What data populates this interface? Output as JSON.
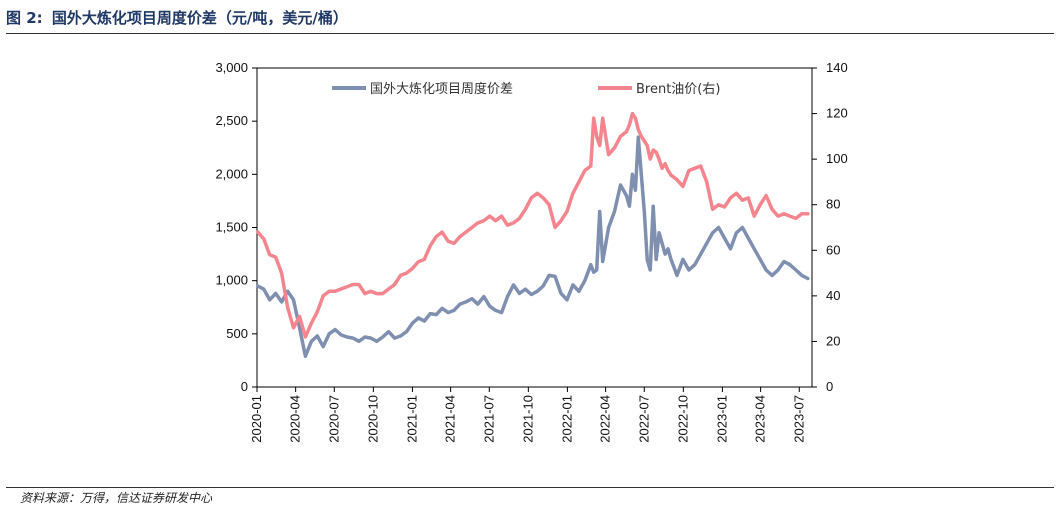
{
  "figure": {
    "label": "图 2:",
    "title": "国外大炼化项目周度价差（元/吨，美元/桶）",
    "source": "资料来源：万得，信达证券研发中心"
  },
  "chart_data": {
    "type": "line",
    "title": "",
    "x_tick_labels": [
      "2020-01",
      "2020-04",
      "2020-07",
      "2020-10",
      "2021-01",
      "2021-04",
      "2021-07",
      "2021-10",
      "2022-01",
      "2022-04",
      "2022-07",
      "2022-10",
      "2023-01",
      "2023-04",
      "2023-07"
    ],
    "y_left": {
      "range": [
        0,
        3000
      ],
      "ticks": [
        "0",
        "500",
        "1,000",
        "1,500",
        "2,000",
        "2,500",
        "3,000"
      ]
    },
    "y_right": {
      "range": [
        0,
        140
      ],
      "ticks": [
        "0",
        "20",
        "40",
        "60",
        "80",
        "100",
        "120",
        "140"
      ]
    },
    "legend": {
      "position": "top"
    },
    "series": [
      {
        "name": "国外大炼化项目周度价差",
        "axis": "left",
        "color": "#7f8faf",
        "x": [
          "2020-01-03",
          "2020-01-17",
          "2020-01-31",
          "2020-02-14",
          "2020-02-28",
          "2020-03-13",
          "2020-03-27",
          "2020-04-10",
          "2020-04-24",
          "2020-05-08",
          "2020-05-22",
          "2020-06-05",
          "2020-06-19",
          "2020-07-03",
          "2020-07-17",
          "2020-07-31",
          "2020-08-14",
          "2020-08-28",
          "2020-09-11",
          "2020-09-25",
          "2020-10-09",
          "2020-10-23",
          "2020-11-06",
          "2020-11-20",
          "2020-12-04",
          "2020-12-18",
          "2021-01-01",
          "2021-01-15",
          "2021-01-29",
          "2021-02-12",
          "2021-02-26",
          "2021-03-12",
          "2021-03-26",
          "2021-04-09",
          "2021-04-23",
          "2021-05-07",
          "2021-05-21",
          "2021-06-04",
          "2021-06-18",
          "2021-07-02",
          "2021-07-16",
          "2021-07-30",
          "2021-08-13",
          "2021-08-27",
          "2021-09-10",
          "2021-09-24",
          "2021-10-08",
          "2021-10-22",
          "2021-11-05",
          "2021-11-19",
          "2021-12-03",
          "2021-12-17",
          "2021-12-31",
          "2022-01-14",
          "2022-01-28",
          "2022-02-11",
          "2022-02-25",
          "2022-03-04",
          "2022-03-11",
          "2022-03-18",
          "2022-03-25",
          "2022-04-08",
          "2022-04-22",
          "2022-05-06",
          "2022-05-20",
          "2022-05-27",
          "2022-06-03",
          "2022-06-10",
          "2022-06-17",
          "2022-06-24",
          "2022-07-01",
          "2022-07-08",
          "2022-07-15",
          "2022-07-22",
          "2022-07-29",
          "2022-08-05",
          "2022-08-12",
          "2022-08-19",
          "2022-08-26",
          "2022-09-02",
          "2022-09-16",
          "2022-09-30",
          "2022-10-14",
          "2022-10-28",
          "2022-11-11",
          "2022-11-25",
          "2022-12-09",
          "2022-12-23",
          "2023-01-06",
          "2023-01-20",
          "2023-02-03",
          "2023-02-17",
          "2023-03-03",
          "2023-03-17",
          "2023-03-31",
          "2023-04-14",
          "2023-04-28",
          "2023-05-12",
          "2023-05-26",
          "2023-06-09",
          "2023-06-23",
          "2023-07-07",
          "2023-07-21"
        ],
        "values": [
          950,
          920,
          820,
          880,
          800,
          900,
          820,
          560,
          290,
          430,
          480,
          380,
          500,
          540,
          490,
          470,
          460,
          430,
          470,
          460,
          430,
          470,
          520,
          460,
          480,
          520,
          600,
          650,
          620,
          690,
          680,
          740,
          700,
          720,
          780,
          800,
          830,
          780,
          850,
          760,
          720,
          700,
          850,
          960,
          880,
          920,
          870,
          900,
          950,
          1050,
          1040,
          880,
          820,
          960,
          900,
          1000,
          1150,
          1080,
          1100,
          1650,
          1180,
          1500,
          1650,
          1900,
          1800,
          1700,
          2000,
          1850,
          2350,
          2000,
          1650,
          1200,
          1100,
          1700,
          1200,
          1450,
          1350,
          1250,
          1300,
          1200,
          1050,
          1200,
          1100,
          1150,
          1250,
          1350,
          1450,
          1500,
          1400,
          1300,
          1450,
          1500,
          1400,
          1300,
          1200,
          1100,
          1050,
          1100,
          1180,
          1150,
          1100,
          1050,
          1020
        ]
      },
      {
        "name": "Brent油价(右)",
        "axis": "right",
        "color": "#f4858e",
        "x": [
          "2020-01-03",
          "2020-01-17",
          "2020-01-31",
          "2020-02-14",
          "2020-02-28",
          "2020-03-13",
          "2020-03-27",
          "2020-04-10",
          "2020-04-24",
          "2020-05-08",
          "2020-05-22",
          "2020-06-05",
          "2020-06-19",
          "2020-07-03",
          "2020-07-17",
          "2020-07-31",
          "2020-08-14",
          "2020-08-28",
          "2020-09-11",
          "2020-09-25",
          "2020-10-09",
          "2020-10-23",
          "2020-11-06",
          "2020-11-20",
          "2020-12-04",
          "2020-12-18",
          "2021-01-01",
          "2021-01-15",
          "2021-01-29",
          "2021-02-12",
          "2021-02-26",
          "2021-03-12",
          "2021-03-26",
          "2021-04-09",
          "2021-04-23",
          "2021-05-07",
          "2021-05-21",
          "2021-06-04",
          "2021-06-18",
          "2021-07-02",
          "2021-07-16",
          "2021-07-30",
          "2021-08-13",
          "2021-08-27",
          "2021-09-10",
          "2021-09-24",
          "2021-10-08",
          "2021-10-22",
          "2021-11-05",
          "2021-11-19",
          "2021-12-03",
          "2021-12-17",
          "2021-12-31",
          "2022-01-14",
          "2022-01-28",
          "2022-02-11",
          "2022-02-25",
          "2022-03-04",
          "2022-03-11",
          "2022-03-18",
          "2022-03-25",
          "2022-04-08",
          "2022-04-22",
          "2022-05-06",
          "2022-05-20",
          "2022-05-27",
          "2022-06-03",
          "2022-06-10",
          "2022-06-17",
          "2022-06-24",
          "2022-07-01",
          "2022-07-08",
          "2022-07-15",
          "2022-07-22",
          "2022-07-29",
          "2022-08-05",
          "2022-08-12",
          "2022-08-19",
          "2022-08-26",
          "2022-09-02",
          "2022-09-16",
          "2022-09-30",
          "2022-10-14",
          "2022-10-28",
          "2022-11-11",
          "2022-11-25",
          "2022-12-09",
          "2022-12-23",
          "2023-01-06",
          "2023-01-20",
          "2023-02-03",
          "2023-02-17",
          "2023-03-03",
          "2023-03-17",
          "2023-03-31",
          "2023-04-14",
          "2023-04-28",
          "2023-05-12",
          "2023-05-26",
          "2023-06-09",
          "2023-06-23",
          "2023-07-07",
          "2023-07-21"
        ],
        "values": [
          68,
          65,
          58,
          57,
          50,
          35,
          26,
          31,
          22,
          28,
          33,
          40,
          42,
          42,
          43,
          44,
          45,
          45,
          41,
          42,
          41,
          41,
          43,
          45,
          49,
          50,
          52,
          55,
          56,
          62,
          66,
          68,
          64,
          63,
          66,
          68,
          70,
          72,
          73,
          75,
          73,
          75,
          71,
          72,
          74,
          78,
          83,
          85,
          83,
          80,
          70,
          73,
          77,
          85,
          90,
          95,
          97,
          118,
          110,
          106,
          118,
          102,
          105,
          110,
          112,
          115,
          120,
          118,
          113,
          110,
          108,
          106,
          100,
          104,
          103,
          100,
          96,
          98,
          95,
          93,
          91,
          88,
          95,
          96,
          97,
          90,
          78,
          80,
          79,
          83,
          85,
          82,
          83,
          75,
          80,
          84,
          78,
          75,
          76,
          75,
          74,
          76,
          76
        ]
      }
    ]
  }
}
